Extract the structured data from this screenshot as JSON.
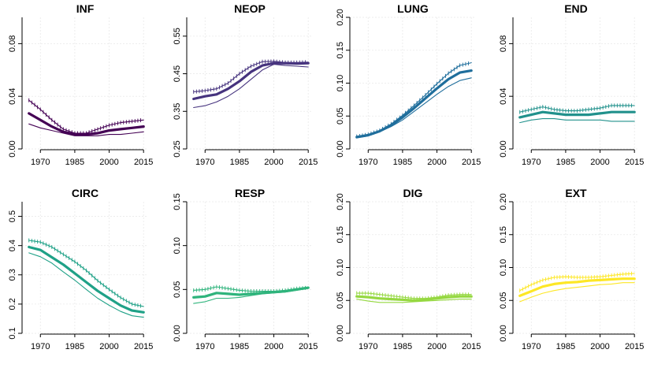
{
  "chart_data": [
    {
      "type": "line",
      "title": "INF",
      "color": "#440154",
      "x": [
        1965,
        1970,
        1975,
        1980,
        1985,
        1990,
        1995,
        2000,
        2005,
        2010,
        2015
      ],
      "xticks": [
        1970,
        1985,
        2000,
        2015
      ],
      "ylim": [
        0,
        0.1
      ],
      "yticks": [
        "0.00",
        "0.04",
        "0.08"
      ],
      "ytick_values": [
        0,
        0.04,
        0.08
      ],
      "series": [
        {
          "role": "estimate",
          "values": [
            0.027,
            0.022,
            0.017,
            0.013,
            0.011,
            0.011,
            0.012,
            0.014,
            0.015,
            0.016,
            0.017
          ]
        },
        {
          "role": "upper",
          "values": [
            0.037,
            0.03,
            0.022,
            0.015,
            0.012,
            0.012,
            0.015,
            0.018,
            0.02,
            0.021,
            0.022
          ]
        },
        {
          "role": "lower",
          "values": [
            0.019,
            0.016,
            0.014,
            0.012,
            0.01,
            0.01,
            0.01,
            0.011,
            0.011,
            0.012,
            0.013
          ]
        }
      ]
    },
    {
      "type": "line",
      "title": "NEOP",
      "color": "#46337e",
      "x": [
        1965,
        1970,
        1975,
        1980,
        1985,
        1990,
        1995,
        2000,
        2005,
        2010,
        2015
      ],
      "xticks": [
        1970,
        1985,
        2000,
        2015
      ],
      "ylim": [
        0.25,
        0.6
      ],
      "yticks": [
        "0.25",
        "0.35",
        "0.45",
        "0.55"
      ],
      "ytick_values": [
        0.25,
        0.35,
        0.45,
        0.55
      ],
      "series": [
        {
          "role": "estimate",
          "values": [
            0.383,
            0.39,
            0.395,
            0.41,
            0.43,
            0.455,
            0.472,
            0.478,
            0.478,
            0.477,
            0.478
          ]
        },
        {
          "role": "upper",
          "values": [
            0.402,
            0.405,
            0.41,
            0.425,
            0.45,
            0.47,
            0.482,
            0.483,
            0.48,
            0.48,
            0.481
          ]
        },
        {
          "role": "lower",
          "values": [
            0.36,
            0.365,
            0.375,
            0.39,
            0.41,
            0.435,
            0.46,
            0.475,
            0.472,
            0.47,
            0.468
          ]
        }
      ]
    },
    {
      "type": "line",
      "title": "LUNG",
      "color": "#1f6e9c",
      "x": [
        1965,
        1970,
        1975,
        1980,
        1985,
        1990,
        1995,
        2000,
        2005,
        2010,
        2015
      ],
      "xticks": [
        1970,
        1985,
        2000,
        2015
      ],
      "ylim": [
        0,
        0.2
      ],
      "yticks": [
        "0.00",
        "0.05",
        "0.10",
        "0.15",
        "0.20"
      ],
      "ytick_values": [
        0,
        0.05,
        0.1,
        0.15,
        0.2
      ],
      "series": [
        {
          "role": "estimate",
          "values": [
            0.018,
            0.021,
            0.027,
            0.036,
            0.048,
            0.062,
            0.077,
            0.092,
            0.106,
            0.116,
            0.119
          ]
        },
        {
          "role": "upper",
          "values": [
            0.019,
            0.022,
            0.028,
            0.038,
            0.051,
            0.066,
            0.082,
            0.099,
            0.115,
            0.127,
            0.131
          ]
        },
        {
          "role": "lower",
          "values": [
            0.017,
            0.02,
            0.026,
            0.034,
            0.044,
            0.057,
            0.07,
            0.083,
            0.095,
            0.104,
            0.108
          ]
        }
      ]
    },
    {
      "type": "line",
      "title": "END",
      "color": "#21918c",
      "x": [
        1965,
        1970,
        1975,
        1980,
        1985,
        1990,
        1995,
        2000,
        2005,
        2010,
        2015
      ],
      "xticks": [
        1970,
        1985,
        2000,
        2015
      ],
      "ylim": [
        0,
        0.1
      ],
      "yticks": [
        "0.00",
        "0.04",
        "0.08"
      ],
      "ytick_values": [
        0,
        0.04,
        0.08
      ],
      "series": [
        {
          "role": "estimate",
          "values": [
            0.024,
            0.026,
            0.028,
            0.027,
            0.026,
            0.026,
            0.026,
            0.027,
            0.028,
            0.028,
            0.028
          ]
        },
        {
          "role": "upper",
          "values": [
            0.028,
            0.03,
            0.032,
            0.03,
            0.029,
            0.029,
            0.03,
            0.031,
            0.033,
            0.033,
            0.033
          ]
        },
        {
          "role": "lower",
          "values": [
            0.02,
            0.022,
            0.023,
            0.023,
            0.022,
            0.022,
            0.022,
            0.022,
            0.021,
            0.021,
            0.021
          ]
        }
      ]
    },
    {
      "type": "line",
      "title": "CIRC",
      "color": "#1fa187",
      "x": [
        1965,
        1970,
        1975,
        1980,
        1985,
        1990,
        1995,
        2000,
        2005,
        2010,
        2015
      ],
      "xticks": [
        1970,
        1985,
        2000,
        2015
      ],
      "ylim": [
        0.1,
        0.55
      ],
      "yticks": [
        "0.1",
        "0.2",
        "0.3",
        "0.4",
        "0.5"
      ],
      "ytick_values": [
        0.1,
        0.2,
        0.3,
        0.4,
        0.5
      ],
      "series": [
        {
          "role": "estimate",
          "values": [
            0.395,
            0.385,
            0.36,
            0.335,
            0.305,
            0.275,
            0.245,
            0.22,
            0.195,
            0.178,
            0.172
          ]
        },
        {
          "role": "upper",
          "values": [
            0.418,
            0.412,
            0.395,
            0.37,
            0.345,
            0.315,
            0.28,
            0.25,
            0.222,
            0.2,
            0.192
          ]
        },
        {
          "role": "lower",
          "values": [
            0.375,
            0.362,
            0.34,
            0.31,
            0.282,
            0.25,
            0.22,
            0.196,
            0.175,
            0.16,
            0.155
          ]
        }
      ]
    },
    {
      "type": "line",
      "title": "RESP",
      "color": "#2fb47c",
      "x": [
        1965,
        1970,
        1975,
        1980,
        1985,
        1990,
        1995,
        2000,
        2005,
        2010,
        2015
      ],
      "xticks": [
        1970,
        1985,
        2000,
        2015
      ],
      "ylim": [
        0,
        0.15
      ],
      "yticks": [
        "0.00",
        "0.05",
        "0.10",
        "0.15"
      ],
      "ytick_values": [
        0,
        0.05,
        0.1,
        0.15
      ],
      "series": [
        {
          "role": "estimate",
          "values": [
            0.041,
            0.042,
            0.046,
            0.045,
            0.044,
            0.045,
            0.046,
            0.047,
            0.048,
            0.05,
            0.052
          ]
        },
        {
          "role": "upper",
          "values": [
            0.049,
            0.05,
            0.053,
            0.051,
            0.049,
            0.048,
            0.048,
            0.048,
            0.049,
            0.051,
            0.052
          ]
        },
        {
          "role": "lower",
          "values": [
            0.034,
            0.036,
            0.04,
            0.04,
            0.041,
            0.043,
            0.045,
            0.046,
            0.047,
            0.049,
            0.051
          ]
        }
      ]
    },
    {
      "type": "line",
      "title": "DIG",
      "color": "#95d840",
      "x": [
        1965,
        1970,
        1975,
        1980,
        1985,
        1990,
        1995,
        2000,
        2005,
        2010,
        2015
      ],
      "xticks": [
        1970,
        1985,
        2000,
        2015
      ],
      "ylim": [
        0,
        0.2
      ],
      "yticks": [
        "0.00",
        "0.05",
        "0.10",
        "0.15",
        "0.20"
      ],
      "ytick_values": [
        0,
        0.05,
        0.1,
        0.15,
        0.2
      ],
      "series": [
        {
          "role": "estimate",
          "values": [
            0.056,
            0.055,
            0.053,
            0.052,
            0.051,
            0.05,
            0.051,
            0.053,
            0.055,
            0.056,
            0.056
          ]
        },
        {
          "role": "upper",
          "values": [
            0.061,
            0.061,
            0.059,
            0.057,
            0.055,
            0.053,
            0.053,
            0.055,
            0.058,
            0.059,
            0.059
          ]
        },
        {
          "role": "lower",
          "values": [
            0.052,
            0.049,
            0.047,
            0.047,
            0.047,
            0.048,
            0.049,
            0.05,
            0.051,
            0.052,
            0.052
          ]
        }
      ]
    },
    {
      "type": "line",
      "title": "EXT",
      "color": "#fde725",
      "x": [
        1965,
        1970,
        1975,
        1980,
        1985,
        1990,
        1995,
        2000,
        2005,
        2010,
        2015
      ],
      "xticks": [
        1970,
        1985,
        2000,
        2015
      ],
      "ylim": [
        0,
        0.2
      ],
      "yticks": [
        "0.00",
        "0.05",
        "0.10",
        "0.15",
        "0.20"
      ],
      "ytick_values": [
        0,
        0.05,
        0.1,
        0.15,
        0.2
      ],
      "series": [
        {
          "role": "estimate",
          "values": [
            0.057,
            0.064,
            0.071,
            0.075,
            0.077,
            0.078,
            0.08,
            0.081,
            0.082,
            0.083,
            0.083
          ]
        },
        {
          "role": "upper",
          "values": [
            0.065,
            0.074,
            0.081,
            0.085,
            0.086,
            0.085,
            0.085,
            0.086,
            0.088,
            0.09,
            0.091
          ]
        },
        {
          "role": "lower",
          "values": [
            0.048,
            0.055,
            0.061,
            0.065,
            0.068,
            0.07,
            0.072,
            0.074,
            0.075,
            0.077,
            0.077
          ]
        }
      ]
    }
  ]
}
